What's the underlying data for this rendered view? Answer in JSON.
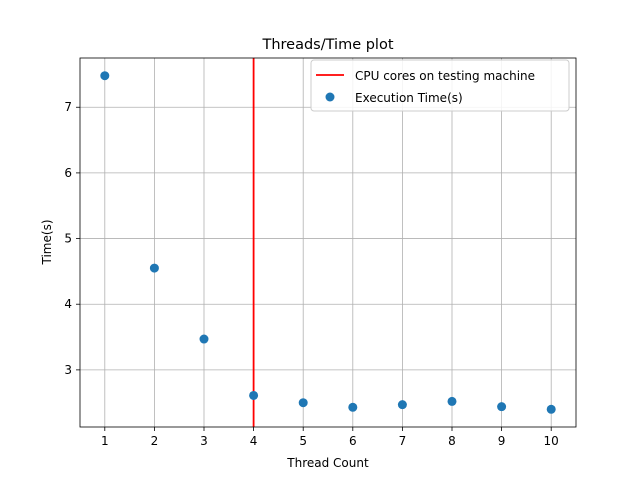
{
  "chart_data": {
    "type": "scatter",
    "title": "Threads/Time plot",
    "xlabel": "Thread Count",
    "ylabel": "Time(s)",
    "xlim": [
      0.5,
      10.5
    ],
    "ylim": [
      2.13,
      7.75
    ],
    "x_ticks": [
      1,
      2,
      3,
      4,
      5,
      6,
      7,
      8,
      9,
      10
    ],
    "y_ticks": [
      3,
      4,
      5,
      6,
      7
    ],
    "grid": true,
    "legend_position": "top-right",
    "series": [
      {
        "name": "Execution Time(s)",
        "kind": "scatter",
        "color": "#1f77b4",
        "x": [
          1,
          2,
          3,
          4,
          5,
          6,
          7,
          8,
          9,
          10
        ],
        "y": [
          7.48,
          4.55,
          3.47,
          2.61,
          2.5,
          2.43,
          2.47,
          2.52,
          2.44,
          2.4
        ]
      }
    ],
    "reference_line": {
      "name": "CPU cores on testing machine",
      "orientation": "vertical",
      "x": 4,
      "color": "#ff0000"
    }
  }
}
